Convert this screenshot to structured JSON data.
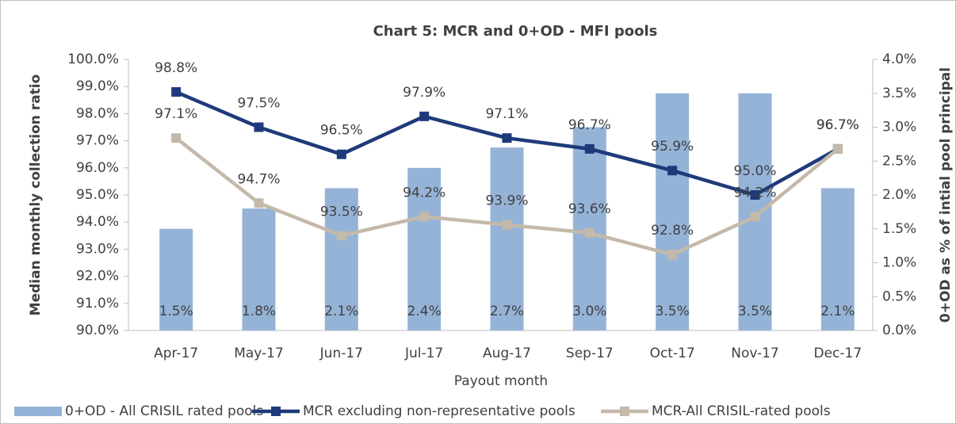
{
  "chart_data": {
    "type": "combo",
    "title": "Chart 5: MCR and 0+OD - MFI pools",
    "x_label": "Payout month",
    "y_label": "Median monthly collection ratio",
    "y2_label": "0+OD as % of intial pool principal",
    "categories": [
      "Apr-17",
      "May-17",
      "Jun-17",
      "Jul-17",
      "Aug-17",
      "Sep-17",
      "Oct-17",
      "Nov-17",
      "Dec-17"
    ],
    "series": [
      {
        "name": "0+OD - All CRISIL rated pools",
        "type": "bar",
        "axis": "y2",
        "color": "#95b3d7",
        "values": [
          1.5,
          1.8,
          2.1,
          2.4,
          2.7,
          3.0,
          3.5,
          3.5,
          2.1
        ],
        "value_labels": [
          "1.5%",
          "1.8%",
          "2.1%",
          "2.4%",
          "2.7%",
          "3.0%",
          "3.5%",
          "3.5%",
          "2.1%"
        ]
      },
      {
        "name": "MCR excluding non-representative pools",
        "type": "line",
        "axis": "y",
        "color": "#1f3a7a",
        "values": [
          98.8,
          97.5,
          96.5,
          97.9,
          97.1,
          96.7,
          95.9,
          95.0,
          96.7
        ],
        "value_labels": [
          "98.8%",
          "97.5%",
          "96.5%",
          "97.9%",
          "97.1%",
          "96.7%",
          "95.9%",
          "95.0%",
          "96.7%"
        ]
      },
      {
        "name": "MCR-All CRISIL-rated pools",
        "type": "line",
        "axis": "y",
        "color": "#c4b9aa",
        "values": [
          97.1,
          94.7,
          93.5,
          94.2,
          93.9,
          93.6,
          92.8,
          94.2,
          96.7
        ],
        "value_labels": [
          "97.1%",
          "94.7%",
          "93.5%",
          "94.2%",
          "93.9%",
          "93.6%",
          "92.8%",
          "94.2%",
          "96.7%"
        ]
      }
    ],
    "ylim": [
      90,
      100
    ],
    "yticks": [
      {
        "value": 90,
        "label": "90.0%"
      },
      {
        "value": 91,
        "label": "91.0%"
      },
      {
        "value": 92,
        "label": "92.0%"
      },
      {
        "value": 93,
        "label": "93.0%"
      },
      {
        "value": 94,
        "label": "94.0%"
      },
      {
        "value": 95,
        "label": "95.0%"
      },
      {
        "value": 96,
        "label": "96.0%"
      },
      {
        "value": 97,
        "label": "97.0%"
      },
      {
        "value": 98,
        "label": "98.0%"
      },
      {
        "value": 99,
        "label": "99.0%"
      },
      {
        "value": 100,
        "label": "100.0%"
      }
    ],
    "y2lim": [
      0,
      4
    ],
    "y2ticks": [
      {
        "value": 0,
        "label": "0.0%"
      },
      {
        "value": 0.5,
        "label": "0.5%"
      },
      {
        "value": 1,
        "label": "1.0%"
      },
      {
        "value": 1.5,
        "label": "1.5%"
      },
      {
        "value": 2,
        "label": "2.0%"
      },
      {
        "value": 2.5,
        "label": "2.5%"
      },
      {
        "value": 3,
        "label": "3.0%"
      },
      {
        "value": 3.5,
        "label": "3.5%"
      },
      {
        "value": 4,
        "label": "4.0%"
      }
    ],
    "legend": "bottom"
  }
}
